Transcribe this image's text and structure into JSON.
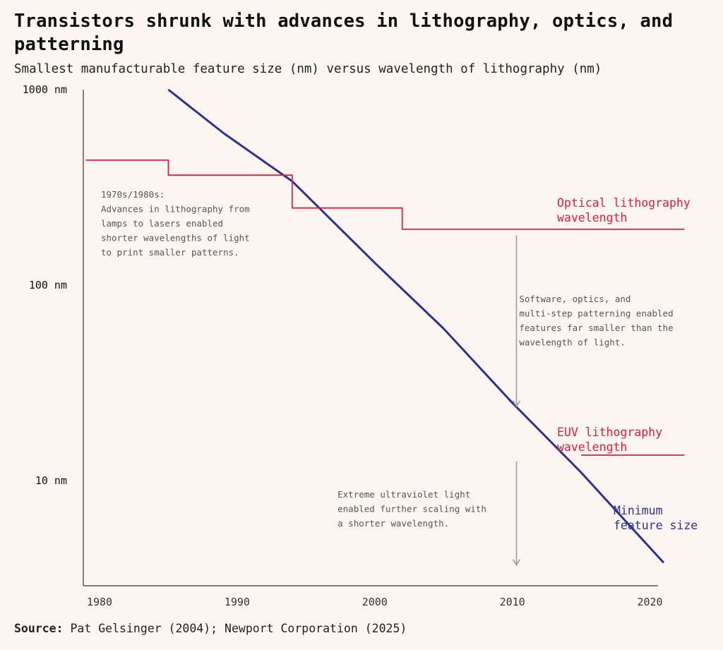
{
  "header": {
    "title": "Transistors shrunk with advances in lithography, optics, and patterning",
    "subtitle": "Smallest manufacturable feature size (nm) versus wavelength of lithography (nm)"
  },
  "source": {
    "label": "Source:",
    "text": "Pat Gelsinger (2004); Newport Corporation (2025)"
  },
  "colors": {
    "background": "#fdf5f1",
    "optical": "#e0213a",
    "feature": "#2e3190",
    "axis": "#333333",
    "arrow": "#9a9a9a",
    "annotation": "#555555"
  },
  "chart_data": {
    "type": "line",
    "title": "Transistors shrunk with advances in lithography, optics, and patterning",
    "subtitle": "Smallest manufacturable feature size (nm) versus wavelength of lithography (nm)",
    "y_scale": "log",
    "xlim": [
      1979,
      2022.5
    ],
    "ylim": [
      3.3,
      1000
    ],
    "x_ticks": [
      1980,
      1990,
      2000,
      2010,
      2020
    ],
    "y_ticks": [
      {
        "value": 1000,
        "label": "1000 nm"
      },
      {
        "value": 100,
        "label": "100 nm"
      },
      {
        "value": 10,
        "label": "10 nm"
      }
    ],
    "series": [
      {
        "name": "Minimum feature size",
        "label_lines": [
          "Minimum",
          "feature size"
        ],
        "color": "#2e3190",
        "step": false,
        "x": [
          1985,
          1989,
          1994,
          2000,
          2005,
          2010,
          2015,
          2021
        ],
        "y": [
          1000,
          600,
          340,
          130,
          60,
          25,
          11,
          3.8
        ]
      },
      {
        "name": "Optical lithography wavelength",
        "label_lines": [
          "Optical lithography",
          "wavelength"
        ],
        "color": "#e0213a",
        "step": true,
        "x": [
          1979,
          1985,
          1994,
          2002,
          2022.5
        ],
        "y": [
          436,
          365,
          248,
          193,
          193
        ]
      },
      {
        "name": "EUV lithography wavelength",
        "label_lines": [
          "EUV lithography",
          "wavelength"
        ],
        "color": "#e0213a",
        "step": true,
        "x": [
          2015,
          2022.5
        ],
        "y": [
          13.5,
          13.5
        ]
      }
    ],
    "annotations": [
      {
        "lines": [
          "1970s/1980s:",
          "Advances in lithography from",
          "lamps to lasers enabled",
          "shorter wavelengths of light",
          "to print smaller patterns."
        ],
        "x": 1980.1,
        "y": 280
      },
      {
        "lines": [
          "Software, optics, and",
          "multi-step patterning enabled",
          "features far smaller than the",
          "wavelength of light."
        ],
        "x": 2010.5,
        "y": 82
      },
      {
        "lines": [
          "Extreme ultraviolet light",
          "enabled further scaling with",
          "a shorter wavelength."
        ],
        "x": 1997.3,
        "y": 8.2
      }
    ],
    "arrows": [
      {
        "x": 2010.3,
        "y_from": 180,
        "y_to": 24
      },
      {
        "x": 2010.3,
        "y_from": 12.5,
        "y_to": 3.7
      }
    ]
  }
}
